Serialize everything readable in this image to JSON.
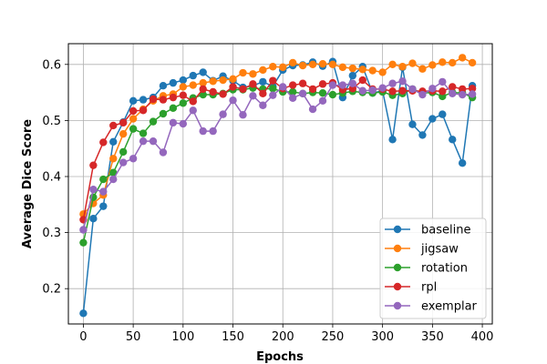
{
  "chart_data": {
    "type": "line",
    "title": "",
    "xlabel": "Epochs",
    "ylabel": "Average Dice Score",
    "xlim": [
      -15,
      410
    ],
    "ylim": [
      0.137,
      0.637
    ],
    "xticks": [
      0,
      50,
      100,
      150,
      200,
      250,
      300,
      350,
      400
    ],
    "yticks": [
      0.2,
      0.3,
      0.4,
      0.5,
      0.6
    ],
    "grid": true,
    "legend_position": "bottom-right",
    "x": [
      0,
      10,
      20,
      30,
      40,
      50,
      60,
      70,
      80,
      90,
      100,
      110,
      120,
      130,
      140,
      150,
      160,
      170,
      180,
      190,
      200,
      210,
      220,
      230,
      240,
      250,
      260,
      270,
      280,
      290,
      300,
      310,
      320,
      330,
      340,
      350,
      360,
      370,
      380,
      390
    ],
    "series": [
      {
        "name": "baseline",
        "color": "#1f77b4",
        "values": [
          0.156,
          0.325,
          0.347,
          0.462,
          0.497,
          0.535,
          0.537,
          0.541,
          0.562,
          0.567,
          0.572,
          0.58,
          0.586,
          0.571,
          0.579,
          0.571,
          0.559,
          0.562,
          0.569,
          0.561,
          0.59,
          0.598,
          0.599,
          0.604,
          0.597,
          0.605,
          0.541,
          0.58,
          0.596,
          0.549,
          0.553,
          0.466,
          0.595,
          0.493,
          0.474,
          0.503,
          0.511,
          0.466,
          0.424,
          0.562
        ]
      },
      {
        "name": "jigsaw",
        "color": "#ff7f0e",
        "values": [
          0.333,
          0.352,
          0.367,
          0.432,
          0.476,
          0.503,
          0.52,
          0.535,
          0.544,
          0.547,
          0.56,
          0.563,
          0.567,
          0.57,
          0.572,
          0.574,
          0.585,
          0.583,
          0.59,
          0.596,
          0.595,
          0.603,
          0.598,
          0.6,
          0.601,
          0.6,
          0.595,
          0.593,
          0.591,
          0.589,
          0.586,
          0.6,
          0.596,
          0.602,
          0.592,
          0.599,
          0.604,
          0.603,
          0.612,
          0.603
        ]
      },
      {
        "name": "rotation",
        "color": "#2ca02c",
        "values": [
          0.282,
          0.363,
          0.395,
          0.407,
          0.444,
          0.485,
          0.477,
          0.498,
          0.512,
          0.522,
          0.531,
          0.54,
          0.546,
          0.546,
          0.548,
          0.555,
          0.555,
          0.558,
          0.556,
          0.557,
          0.551,
          0.551,
          0.548,
          0.55,
          0.549,
          0.546,
          0.549,
          0.552,
          0.55,
          0.549,
          0.551,
          0.545,
          0.548,
          0.556,
          0.549,
          0.55,
          0.543,
          0.55,
          0.549,
          0.541
        ]
      },
      {
        "name": "rpl",
        "color": "#d62728",
        "values": [
          0.323,
          0.42,
          0.461,
          0.491,
          0.496,
          0.517,
          0.518,
          0.538,
          0.537,
          0.541,
          0.545,
          0.534,
          0.556,
          0.551,
          0.547,
          0.56,
          0.556,
          0.565,
          0.548,
          0.571,
          0.557,
          0.563,
          0.566,
          0.556,
          0.565,
          0.567,
          0.555,
          0.557,
          0.572,
          0.556,
          0.556,
          0.552,
          0.553,
          0.553,
          0.552,
          0.553,
          0.552,
          0.56,
          0.556,
          0.557
        ]
      },
      {
        "name": "exemplar",
        "color": "#9467bd",
        "values": [
          0.305,
          0.377,
          0.373,
          0.395,
          0.425,
          0.432,
          0.463,
          0.463,
          0.443,
          0.496,
          0.494,
          0.518,
          0.481,
          0.481,
          0.511,
          0.536,
          0.51,
          0.544,
          0.527,
          0.545,
          0.56,
          0.54,
          0.548,
          0.52,
          0.535,
          0.563,
          0.563,
          0.566,
          0.553,
          0.554,
          0.558,
          0.566,
          0.57,
          0.556,
          0.546,
          0.557,
          0.569,
          0.548,
          0.546,
          0.547
        ]
      }
    ]
  }
}
